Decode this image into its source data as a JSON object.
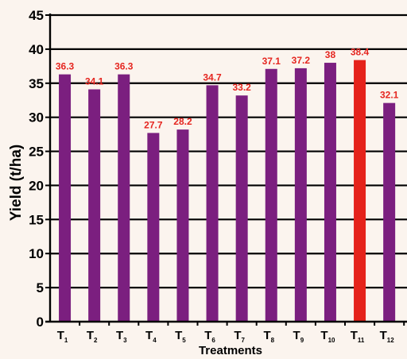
{
  "chart_data": {
    "type": "bar",
    "categories": [
      {
        "main": "T",
        "sub": "1"
      },
      {
        "main": "T",
        "sub": "2"
      },
      {
        "main": "T",
        "sub": "3"
      },
      {
        "main": "T",
        "sub": "4"
      },
      {
        "main": "T",
        "sub": "5"
      },
      {
        "main": "T",
        "sub": "6"
      },
      {
        "main": "T",
        "sub": "7"
      },
      {
        "main": "T",
        "sub": "8"
      },
      {
        "main": "T",
        "sub": "9"
      },
      {
        "main": "T",
        "sub": "10"
      },
      {
        "main": "T",
        "sub": "11"
      },
      {
        "main": "T",
        "sub": "12"
      }
    ],
    "values": [
      36.3,
      34.1,
      36.3,
      27.7,
      28.2,
      34.7,
      33.2,
      37.1,
      37.2,
      38,
      38.4,
      32.1
    ],
    "value_labels": [
      "36.3",
      "34.1",
      "36.3",
      "27.7",
      "28.2",
      "34.7",
      "33.2",
      "37.1",
      "37.2",
      "38",
      "38.4",
      "32.1"
    ],
    "highlight_index": 10,
    "xlabel": "Treatments",
    "ylabel": "Yield (t/ha)",
    "ylim": [
      0,
      45
    ],
    "yticks": [
      0,
      5,
      10,
      15,
      20,
      25,
      30,
      35,
      40,
      45
    ],
    "ytick_labels": [
      "0",
      "5",
      "10",
      "15",
      "20",
      "25",
      "30",
      "35",
      "40",
      "45"
    ],
    "grid": true,
    "colors": {
      "bar": "#7b1f7f",
      "highlight": "#e5231b",
      "label": "#e52620",
      "grid": "#000000",
      "background": "#fbf4ee"
    }
  }
}
